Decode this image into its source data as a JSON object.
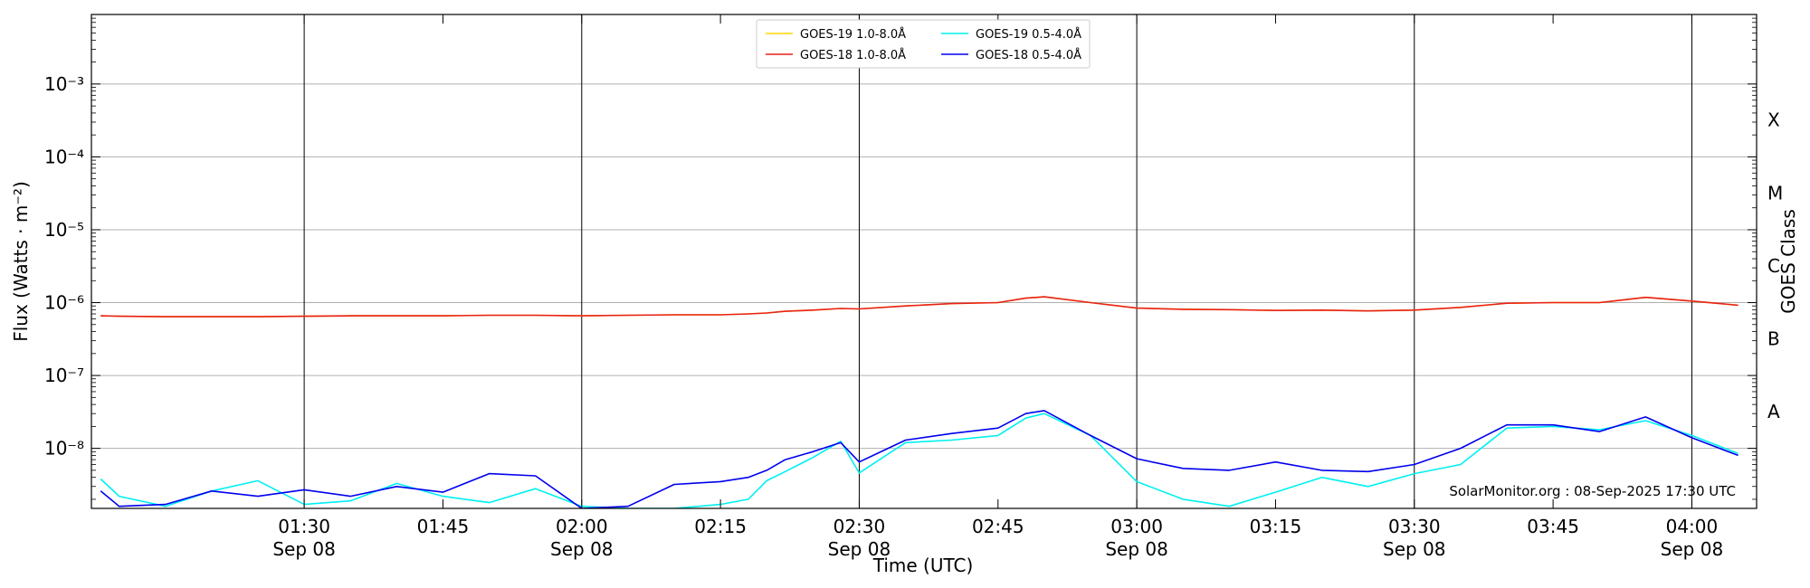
{
  "chart_data": {
    "type": "line",
    "xlabel": "Time (UTC)",
    "ylabel": "Flux (Watts · m⁻²)",
    "right_ylabel": "GOES Class",
    "watermark": "SolarMonitor.org : 08-Sep-2025 17:30 UTC",
    "xlim": [
      "2025-09-08 01:07",
      "2025-09-08 04:07"
    ],
    "ylim": [
      1.5e-09,
      0.009
    ],
    "yscale": "log",
    "grid": "horizontal",
    "legend_position": "top-center",
    "y_tick_labels": [
      {
        "value": 1e-08,
        "label": "10⁻⁸"
      },
      {
        "value": 1e-07,
        "label": "10⁻⁷"
      },
      {
        "value": 1e-06,
        "label": "10⁻⁶"
      },
      {
        "value": 1e-05,
        "label": "10⁻⁵"
      },
      {
        "value": 0.0001,
        "label": "10⁻⁴"
      },
      {
        "value": 0.001,
        "label": "10⁻³"
      }
    ],
    "goes_classes": [
      {
        "label": "A",
        "value": 1e-08
      },
      {
        "label": "B",
        "value": 1e-07
      },
      {
        "label": "C",
        "value": 1e-06
      },
      {
        "label": "M",
        "value": 1e-05
      },
      {
        "label": "X",
        "value": 0.0001
      }
    ],
    "x_tick_labels": [
      {
        "time": "01:30",
        "date": "Sep 08",
        "vline": true
      },
      {
        "time": "01:45",
        "date": "",
        "vline": false
      },
      {
        "time": "02:00",
        "date": "Sep 08",
        "vline": true
      },
      {
        "time": "02:15",
        "date": "",
        "vline": false
      },
      {
        "time": "02:30",
        "date": "Sep 08",
        "vline": true
      },
      {
        "time": "02:45",
        "date": "",
        "vline": false
      },
      {
        "time": "03:00",
        "date": "Sep 08",
        "vline": true
      },
      {
        "time": "03:15",
        "date": "",
        "vline": false
      },
      {
        "time": "03:30",
        "date": "Sep 08",
        "vline": true
      },
      {
        "time": "03:45",
        "date": "",
        "vline": false
      },
      {
        "time": "04:00",
        "date": "Sep 08",
        "vline": true
      }
    ],
    "x": [
      "01:08",
      "01:10",
      "01:15",
      "01:20",
      "01:25",
      "01:30",
      "01:35",
      "01:40",
      "01:45",
      "01:50",
      "01:55",
      "02:00",
      "02:05",
      "02:10",
      "02:15",
      "02:18",
      "02:20",
      "02:22",
      "02:25",
      "02:28",
      "02:30",
      "02:35",
      "02:40",
      "02:45",
      "02:48",
      "02:50",
      "02:55",
      "03:00",
      "03:05",
      "03:10",
      "03:15",
      "03:20",
      "03:25",
      "03:30",
      "03:35",
      "03:40",
      "03:45",
      "03:50",
      "03:55",
      "04:00",
      "04:05"
    ],
    "series": [
      {
        "name": "GOES-19 1.0-8.0Å",
        "color": "#ffd700",
        "values": [
          6.6e-07,
          6.5e-07,
          6.4e-07,
          6.4e-07,
          6.4e-07,
          6.5e-07,
          6.6e-07,
          6.6e-07,
          6.6e-07,
          6.7e-07,
          6.7e-07,
          6.6e-07,
          6.7e-07,
          6.8e-07,
          6.8e-07,
          7e-07,
          7.2e-07,
          7.6e-07,
          7.9e-07,
          8.3e-07,
          8.2e-07,
          9e-07,
          9.7e-07,
          1e-06,
          1.15e-06,
          1.2e-06,
          1e-06,
          8.4e-07,
          8.1e-07,
          8e-07,
          7.8e-07,
          7.9e-07,
          7.7e-07,
          7.9e-07,
          8.6e-07,
          9.8e-07,
          1e-06,
          1e-06,
          1.18e-06,
          1.05e-06,
          9.2e-07
        ]
      },
      {
        "name": "GOES-18 1.0-8.0Å",
        "color": "#e8211c",
        "values": [
          6.6e-07,
          6.5e-07,
          6.4e-07,
          6.4e-07,
          6.4e-07,
          6.5e-07,
          6.6e-07,
          6.6e-07,
          6.6e-07,
          6.7e-07,
          6.7e-07,
          6.6e-07,
          6.7e-07,
          6.8e-07,
          6.8e-07,
          7e-07,
          7.2e-07,
          7.6e-07,
          7.9e-07,
          8.3e-07,
          8.2e-07,
          9e-07,
          9.7e-07,
          1e-06,
          1.15e-06,
          1.2e-06,
          1e-06,
          8.4e-07,
          8.1e-07,
          8e-07,
          7.8e-07,
          7.9e-07,
          7.7e-07,
          7.9e-07,
          8.6e-07,
          9.8e-07,
          1e-06,
          1e-06,
          1.18e-06,
          1.05e-06,
          9.2e-07
        ]
      },
      {
        "name": "GOES-19 0.5-4.0Å",
        "color": "#00f0f0",
        "values": [
          3.8e-09,
          2.2e-09,
          1.6e-09,
          2.6e-09,
          3.6e-09,
          1.7e-09,
          1.9e-09,
          3.3e-09,
          2.2e-09,
          1.8e-09,
          2.8e-09,
          1.6e-09,
          1.5e-09,
          1.5e-09,
          1.7e-09,
          2e-09,
          3.6e-09,
          4.8e-09,
          7.5e-09,
          1.25e-08,
          4.6e-09,
          1.2e-08,
          1.3e-08,
          1.5e-08,
          2.6e-08,
          3e-08,
          1.5e-08,
          3.5e-09,
          2e-09,
          1.6e-09,
          2.5e-09,
          4e-09,
          3e-09,
          4.5e-09,
          6e-09,
          1.9e-08,
          2e-08,
          1.8e-08,
          2.4e-08,
          1.5e-08,
          8.5e-09
        ]
      },
      {
        "name": "GOES-18 0.5-4.0Å",
        "color": "#0000ee",
        "values": [
          2.6e-09,
          1.6e-09,
          1.7e-09,
          2.6e-09,
          2.2e-09,
          2.7e-09,
          2.2e-09,
          3e-09,
          2.5e-09,
          4.5e-09,
          4.2e-09,
          1.5e-09,
          1.6e-09,
          3.2e-09,
          3.5e-09,
          4e-09,
          5e-09,
          7e-09,
          9e-09,
          1.2e-08,
          6.5e-09,
          1.3e-08,
          1.6e-08,
          1.9e-08,
          3e-08,
          3.3e-08,
          1.5e-08,
          7.2e-09,
          5.3e-09,
          5e-09,
          6.5e-09,
          5e-09,
          4.8e-09,
          6e-09,
          1e-08,
          2.1e-08,
          2.1e-08,
          1.7e-08,
          2.7e-08,
          1.4e-08,
          8e-09
        ]
      }
    ]
  }
}
